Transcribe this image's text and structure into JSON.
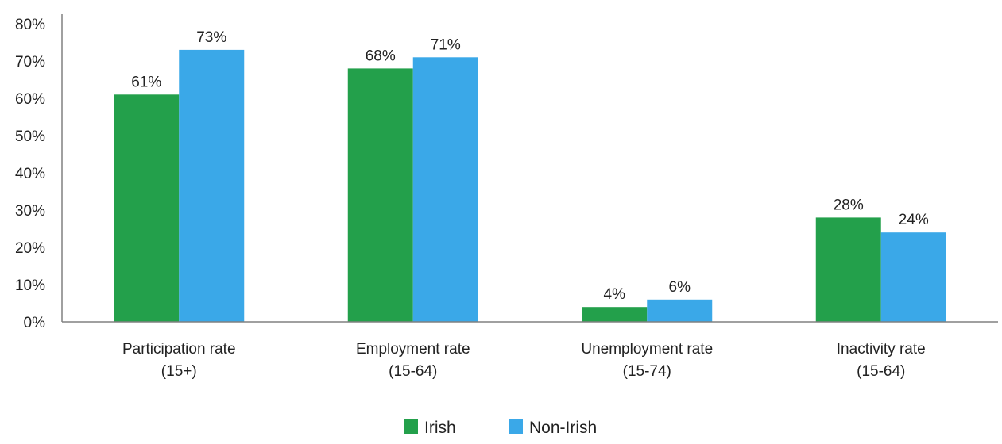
{
  "chart_data": {
    "type": "bar",
    "categories": [
      [
        "Participation rate",
        "(15+)"
      ],
      [
        "Employment rate",
        "(15-64)"
      ],
      [
        "Unemployment rate",
        "(15-74)"
      ],
      [
        "Inactivity rate",
        "(15-64)"
      ]
    ],
    "series": [
      {
        "name": "Irish",
        "values": [
          61,
          68,
          4,
          28
        ],
        "labels": [
          "61%",
          "68%",
          "4%",
          "28%"
        ],
        "color": "#23a04b"
      },
      {
        "name": "Non-Irish",
        "values": [
          73,
          71,
          6,
          24
        ],
        "labels": [
          "73%",
          "71%",
          "6%",
          "24%"
        ],
        "color": "#3aa8e8"
      }
    ],
    "ylim": [
      0,
      80
    ],
    "yticks": [
      "0%",
      "10%",
      "20%",
      "30%",
      "40%",
      "50%",
      "60%",
      "70%",
      "80%"
    ],
    "grid": false,
    "legend_position": "bottom-center",
    "axis_color": "#808080"
  }
}
